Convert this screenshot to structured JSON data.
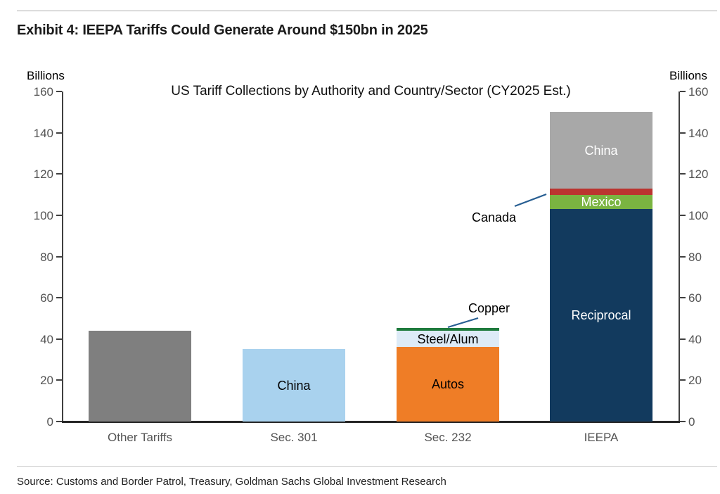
{
  "page": {
    "exhibit_title": "Exhibit 4: IEEPA Tariffs Could Generate Around $150bn in 2025",
    "axis_unit_left": "Billions",
    "axis_unit_right": "Billions",
    "source": "Source: Customs and Border Patrol, Treasury, Goldman Sachs Global Investment Research"
  },
  "chart_data": {
    "type": "bar",
    "stacked": true,
    "title": "US Tariff Collections by Authority and Country/Sector (CY2025 Est.)",
    "ylabel": "Billions",
    "ylim": [
      0,
      160
    ],
    "ytick_interval": 20,
    "yticks": [
      0,
      20,
      40,
      60,
      80,
      100,
      120,
      140,
      160
    ],
    "grid": false,
    "legend": "none (labels inside bars and arrow annotations)",
    "categories": [
      "Other Tariffs",
      "Sec. 301",
      "Sec. 232",
      "IEEPA"
    ],
    "bars": [
      {
        "category": "Other Tariffs",
        "total": 44,
        "segments": [
          {
            "label": "",
            "value": 44,
            "color": "#7F7F7F",
            "label_color": ""
          }
        ]
      },
      {
        "category": "Sec. 301",
        "total": 35,
        "segments": [
          {
            "label": "China",
            "value": 35,
            "color": "#A9D2EE",
            "label_color": "#000000"
          }
        ]
      },
      {
        "category": "Sec. 232",
        "total": 45,
        "segments": [
          {
            "label": "Autos",
            "value": 36,
            "color": "#EF7D26",
            "label_color": "#000000"
          },
          {
            "label": "Steel/Alum",
            "value": 8,
            "color": "#DDEBF7",
            "label_color": "#000000"
          },
          {
            "label": "Copper",
            "value": 1,
            "color": "#1E7A3C",
            "label_color": "",
            "annotated": true
          }
        ]
      },
      {
        "category": "IEEPA",
        "total": 150,
        "segments": [
          {
            "label": "Reciprocal",
            "value": 103,
            "color": "#123A5E",
            "label_color": "#FFFFFF"
          },
          {
            "label": "Mexico",
            "value": 7,
            "color": "#7AB441",
            "label_color": "#FFFFFF"
          },
          {
            "label": "Canada",
            "value": 3,
            "color": "#BB3430",
            "label_color": "",
            "annotated": true
          },
          {
            "label": "China",
            "value": 37,
            "color": "#A8A8A8",
            "label_color": "#FFFFFF"
          }
        ]
      }
    ],
    "annotations": [
      {
        "label": "Canada",
        "points_to": "IEEPA Canada segment"
      },
      {
        "label": "Copper",
        "points_to": "Sec. 232 Copper segment"
      }
    ],
    "style": {
      "annotation_line_color": "#275E92",
      "axis_color": "#404040",
      "baseline_color": "#262626",
      "tick_label_color": "#545454"
    }
  }
}
